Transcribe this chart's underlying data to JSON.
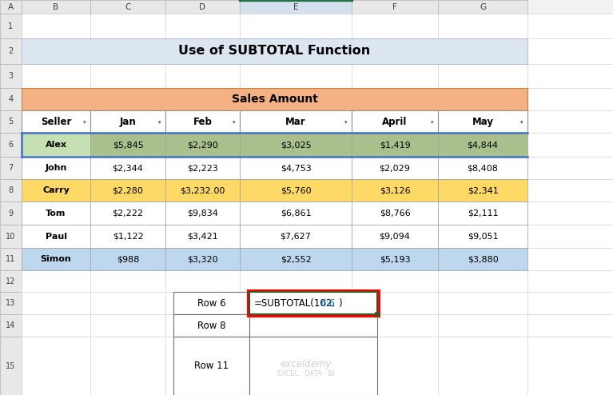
{
  "title": "Use of SUBTOTAL Function",
  "title_bg": "#dce6f1",
  "sales_amount_header": "Sales Amount",
  "sales_amount_bg": "#f4b183",
  "col_headers": [
    "Seller",
    "Jan",
    "Feb",
    "Mar",
    "April",
    "May"
  ],
  "rows": [
    {
      "name": "Alex",
      "jan": "$5,845",
      "feb": "$2,290",
      "mar": "$3,025",
      "april": "$1,419",
      "may": "$4,844",
      "name_bg": "#c6e0b4",
      "data_bg": "#a9c08c"
    },
    {
      "name": "John",
      "jan": "$2,344",
      "feb": "$2,223",
      "mar": "$4,753",
      "april": "$2,029",
      "may": "$8,408",
      "name_bg": "#ffffff",
      "data_bg": "#ffffff"
    },
    {
      "name": "Carry",
      "jan": "$2,280",
      "feb": "$3,232.00",
      "mar": "$5,760",
      "april": "$3,126",
      "may": "$2,341",
      "name_bg": "#ffd966",
      "data_bg": "#ffd966"
    },
    {
      "name": "Tom",
      "jan": "$2,222",
      "feb": "$9,834",
      "mar": "$6,861",
      "april": "$8,766",
      "may": "$2,111",
      "name_bg": "#ffffff",
      "data_bg": "#ffffff"
    },
    {
      "name": "Paul",
      "jan": "$1,122",
      "feb": "$3,421",
      "mar": "$7,627",
      "april": "$9,094",
      "may": "$9,051",
      "name_bg": "#ffffff",
      "data_bg": "#ffffff"
    },
    {
      "name": "Simon",
      "jan": "$988",
      "feb": "$3,320",
      "mar": "$2,552",
      "april": "$5,193",
      "may": "$3,880",
      "name_bg": "#bdd7ee",
      "data_bg": "#bdd7ee"
    }
  ],
  "formula_rows": [
    "Row 6",
    "Row 8",
    "Row 11"
  ],
  "formula_text_black": "=SUBTOTAL(102,",
  "formula_text_blue": "6:6",
  "formula_text_close": ")",
  "excel_cols": [
    "A",
    "B",
    "C",
    "D",
    "E",
    "F",
    "G"
  ],
  "active_col": "E",
  "bg": "#f2f2f2",
  "col_hdr_bg": "#e8e8e8",
  "active_col_bg": "#d4e0ee",
  "row_hdr_bg": "#e8e8e8",
  "watermark_line1": "exceldemy",
  "watermark_line2": "EXCEL · DATA · BI"
}
